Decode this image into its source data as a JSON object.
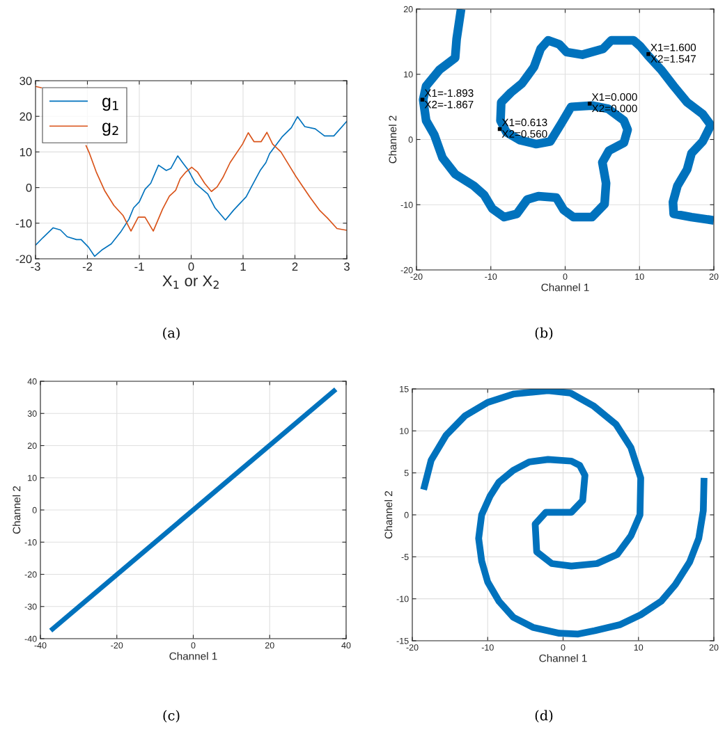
{
  "chart_data": [
    {
      "type": "line",
      "xlabel": "X$_{1}$ or X$_{2}$",
      "xlim": [
        -3,
        3
      ],
      "xticks": [
        -3,
        -2,
        -1,
        0,
        1,
        2,
        3
      ],
      "ylim": [
        -20,
        30
      ],
      "yticks": [
        -20,
        -10,
        0,
        10,
        20,
        30
      ],
      "grid": true,
      "legend": "top left",
      "annotations": [
        "(a)"
      ],
      "series": [
        {
          "name": "g$_{1}$",
          "color": "#0072bd",
          "x": [
            -3,
            -2.86,
            -2.66,
            -2.52,
            -2.39,
            -2.21,
            -2.12,
            -1.98,
            -1.86,
            -1.71,
            -1.54,
            -1.36,
            -1.2,
            -1.11,
            -1.0,
            -0.89,
            -0.78,
            -0.63,
            -0.48,
            -0.39,
            -0.26,
            -0.15,
            -0.05,
            0.08,
            0.32,
            0.46,
            0.66,
            0.82,
            1.06,
            1.15,
            1.33,
            1.44,
            1.51,
            1.75,
            1.93,
            2.05,
            2.19,
            2.39,
            2.57,
            2.75,
            3.0
          ],
          "values": [
            -16.2,
            -14.1,
            -11.3,
            -11.9,
            -13.8,
            -14.6,
            -14.6,
            -16.7,
            -19.3,
            -17.4,
            -15.8,
            -12.5,
            -8.9,
            -5.7,
            -4.0,
            -0.5,
            1.2,
            6.3,
            4.8,
            5.4,
            8.9,
            6.7,
            4.8,
            1.2,
            -1.8,
            -5.7,
            -9.1,
            -6.3,
            -2.6,
            -0.1,
            4.8,
            7.0,
            9.5,
            14.2,
            16.8,
            19.9,
            17.1,
            16.5,
            14.5,
            14.5,
            18.6
          ]
        },
        {
          "name": "g$_{2}$",
          "color": "#d95319",
          "x": [
            -3,
            -2.88,
            -2.4,
            -2.03,
            -1.96,
            -1.83,
            -1.67,
            -1.49,
            -1.31,
            -1.16,
            -1.02,
            -0.89,
            -0.73,
            -0.55,
            -0.42,
            -0.3,
            -0.21,
            -0.1,
            0.01,
            0.12,
            0.26,
            0.39,
            0.5,
            0.61,
            0.75,
            0.99,
            1.1,
            1.21,
            1.35,
            1.46,
            1.57,
            1.73,
            1.91,
            2.02,
            2.14,
            2.29,
            2.47,
            2.63,
            2.81,
            3.0
          ],
          "values": [
            28.4,
            28.0,
            null,
            11.9,
            9.6,
            4.4,
            -0.8,
            -5.0,
            -7.9,
            -12.2,
            -8.3,
            -8.3,
            -12.2,
            -6.0,
            -2.4,
            -0.8,
            2.5,
            4.4,
            5.7,
            4.4,
            1.2,
            -1.1,
            0.2,
            2.8,
            7.0,
            12.2,
            15.4,
            12.9,
            12.9,
            15.5,
            12.2,
            10.0,
            5.7,
            3.1,
            0.5,
            -2.7,
            -6.3,
            -8.6,
            -11.5,
            -12.0
          ]
        }
      ]
    },
    {
      "type": "line",
      "xlabel": "Channel 1",
      "ylabel": "Channel 2",
      "xlim": [
        -20,
        20
      ],
      "xticks": [
        -20,
        -10,
        0,
        10,
        20
      ],
      "ylim": [
        -20,
        20
      ],
      "yticks": [
        -20,
        -10,
        0,
        10,
        20
      ],
      "grid": true,
      "annotations": [
        "(b)",
        {
          "text": "X1=-1.893\nX2=-1.867",
          "x": -19.2,
          "y": 6.1
        },
        {
          "text": "X1=0.613\nX2=0.560",
          "x": -8.8,
          "y": 1.6
        },
        {
          "text": "X1=0.000\nX2=0.000",
          "x": 3.3,
          "y": 5.5
        },
        {
          "text": "X1=1.600\nX2=1.547",
          "x": 11.2,
          "y": 13.1
        }
      ],
      "series": [
        {
          "color": "#0072bd",
          "x": [
            -14.0,
            -14.6,
            -14.8,
            -16.9,
            -18.7,
            -19.1,
            -18.7,
            -17.6,
            -16.5,
            -14.8,
            -12.3,
            -10.9,
            -9.8,
            -8.2,
            -6.5,
            -5.1,
            -3.6,
            -1.2,
            -0.2,
            1.1,
            3.6,
            5.3,
            5.5,
            5.0,
            5.9,
            7.9,
            8.4,
            7.9,
            5.8,
            3.6,
            0.8,
            -0.5,
            -2.0,
            -3.9,
            -6.1,
            -7.9,
            -8.7,
            -8.6,
            -7.3,
            -5.8,
            -4.2,
            -3.3,
            -2.3,
            -0.8,
            0.2,
            2.3,
            5.1,
            6.2,
            9.2,
            10.1,
            11.2,
            12.9,
            14.6,
            16.4,
            18.5,
            19.6,
            18.5,
            17.0,
            16.4,
            15.1,
            14.5,
            14.6,
            17.0,
            20.0
          ],
          "values": [
            20,
            15.4,
            12.5,
            10.7,
            8.2,
            6.1,
            2.9,
            0.7,
            -2.8,
            -5.3,
            -7.1,
            -8.5,
            -10.6,
            -11.9,
            -11.4,
            -9.2,
            -8.7,
            -8.9,
            -10.8,
            -11.9,
            -11.9,
            -9.9,
            -6.7,
            -3.5,
            -1.7,
            -0.5,
            1.5,
            2.9,
            4.7,
            5.2,
            5.0,
            2.5,
            -0.3,
            -0.7,
            -0.1,
            1.1,
            2.9,
            5.7,
            7.2,
            8.6,
            11.1,
            13.9,
            15.2,
            14.6,
            13.4,
            13.0,
            13.9,
            15.2,
            15.2,
            14.3,
            12.8,
            10.7,
            8.2,
            5.7,
            3.9,
            2.2,
            -0.3,
            -2.1,
            -4.6,
            -7.1,
            -9.6,
            -11.4,
            -11.9,
            -12.4
          ]
        }
      ]
    },
    {
      "type": "line",
      "xlabel": "Channel 1",
      "ylabel": "Channel 2",
      "xlim": [
        -40,
        40
      ],
      "xticks": [
        -40,
        -20,
        0,
        20,
        40
      ],
      "ylim": [
        -40,
        40
      ],
      "yticks": [
        -40,
        -30,
        -20,
        -10,
        0,
        10,
        20,
        30,
        40
      ],
      "grid": true,
      "annotations": [
        "(c)"
      ],
      "series": [
        {
          "color": "#0072bd",
          "x": [
            -37.3,
            37.3
          ],
          "values": [
            -37.5,
            37.5
          ]
        }
      ]
    },
    {
      "type": "line",
      "xlabel": "Channel 1",
      "ylabel": "Channel 2",
      "xlim": [
        -20,
        20
      ],
      "xticks": [
        -20,
        -10,
        0,
        10,
        20
      ],
      "ylim": [
        -15,
        15
      ],
      "yticks": [
        -15,
        -10,
        -5,
        0,
        5,
        10,
        15
      ],
      "grid": true,
      "annotations": [
        "(d)"
      ],
      "series": [
        {
          "color": "#0072bd",
          "x": [
            -18.5,
            -17.5,
            -15.5,
            -13,
            -10,
            -6.5,
            -2,
            1,
            4,
            7,
            9,
            10.3,
            10.2,
            9,
            7.2,
            4.5,
            1.1,
            -1.5,
            -3.5,
            -3.7,
            -2.3,
            1.1,
            2.6,
            2.9,
            2.2,
            1.1,
            -2,
            -4.5,
            -6.6,
            -8.5,
            -9.7,
            -10.8,
            -11.2,
            -10.8,
            -10,
            -8.5,
            -6.6,
            -4,
            -0.5,
            2,
            4.2,
            7.5,
            10.3,
            13,
            14.9,
            16.8,
            18,
            18.6,
            18.7
          ],
          "values": [
            3,
            6.5,
            9.5,
            11.8,
            13.4,
            14.4,
            14.8,
            14.5,
            13,
            10.8,
            8,
            4.4,
            0,
            -2.5,
            -4.7,
            -5.8,
            -6.1,
            -5.8,
            -4.4,
            -1.1,
            0.3,
            0.3,
            1.7,
            4.7,
            5.9,
            6.4,
            6.6,
            6.3,
            5.3,
            3.9,
            2.2,
            0,
            -2.8,
            -5.5,
            -8,
            -10.3,
            -12.2,
            -13.4,
            -14.1,
            -14.2,
            -13.8,
            -13.1,
            -11.9,
            -10.3,
            -8.3,
            -5.6,
            -2.8,
            0.5,
            4.4
          ]
        }
      ]
    }
  ]
}
